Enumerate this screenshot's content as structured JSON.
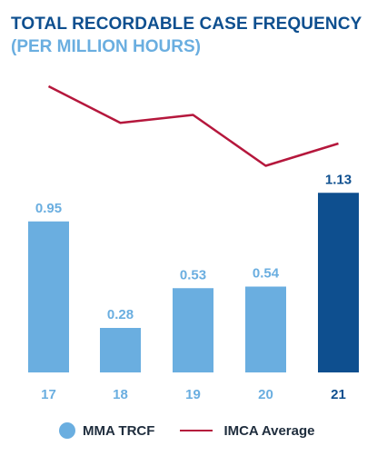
{
  "chart_data": {
    "type": "bar",
    "title": "TOTAL RECORDABLE CASE FREQUENCY",
    "subtitle": "(PER MILLION HOURS)",
    "categories": [
      "17",
      "18",
      "19",
      "20",
      "21"
    ],
    "series": [
      {
        "name": "MMA TRCF",
        "type": "bar",
        "values": [
          0.95,
          0.28,
          0.53,
          0.54,
          1.13
        ],
        "data_labels": [
          "0.95",
          "0.28",
          "0.53",
          "0.54",
          "1.13"
        ]
      },
      {
        "name": "IMCA Average",
        "type": "line",
        "values": [
          1.8,
          1.57,
          1.62,
          1.3,
          1.44
        ]
      }
    ],
    "highlight_category": "21",
    "ylim": [
      0,
      2.0
    ],
    "grid": false,
    "legend_position": "bottom",
    "colors": {
      "bar": "#6aaee0",
      "bar_highlight": "#0e4f8f",
      "line": "#b5173c",
      "title": "#0e4f8f",
      "subtitle": "#6aaee0",
      "axis_label": "#6aaee0",
      "axis_label_highlight": "#0e4f8f"
    }
  }
}
